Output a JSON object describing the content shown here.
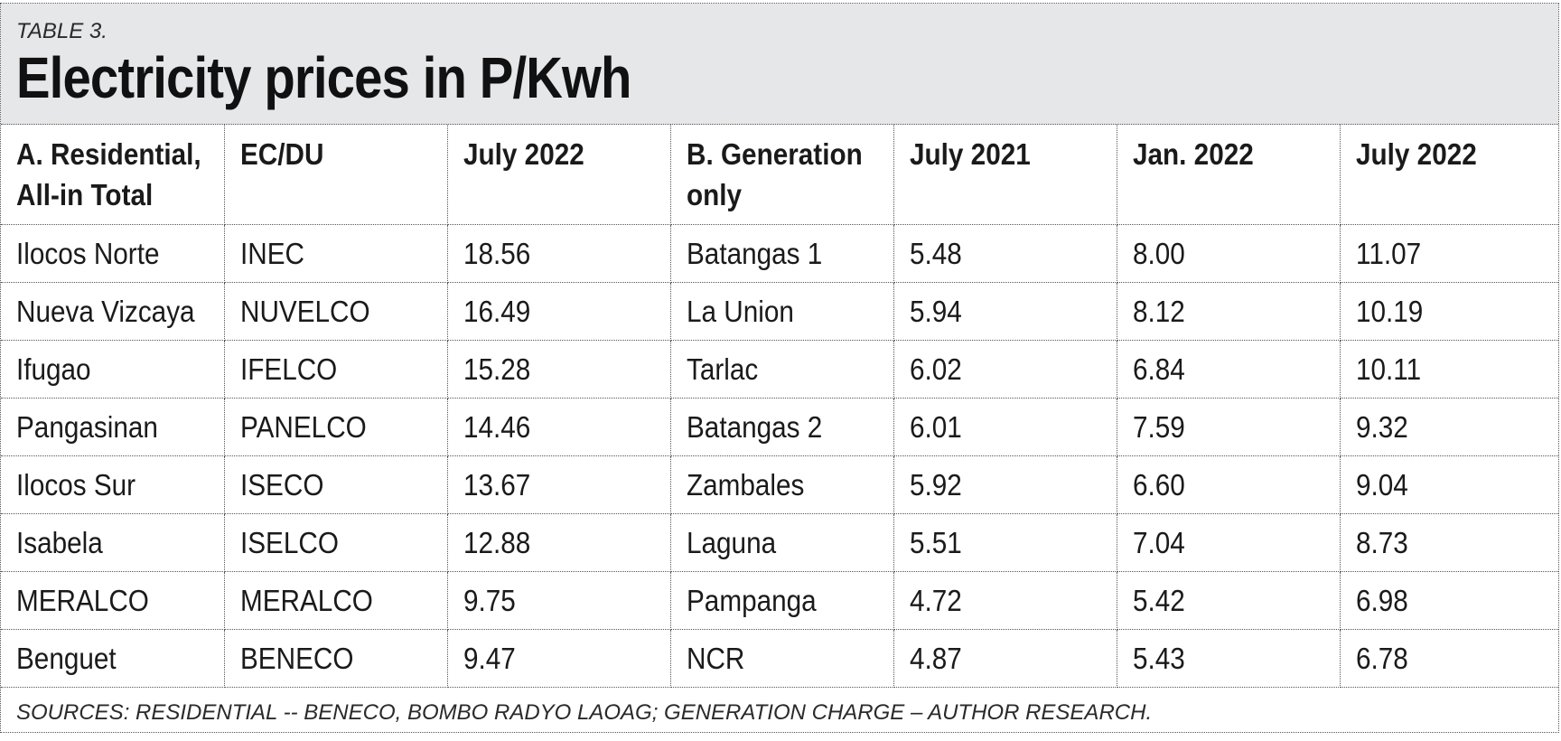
{
  "table_label": "TABLE 3.",
  "title": "Electricity prices in P/Kwh",
  "columns": [
    "A. Residential, All-in Total",
    "EC/DU",
    "July 2022",
    "B. Generation only",
    "July 2021",
    "Jan. 2022",
    "July 2022"
  ],
  "rows": [
    [
      "Ilocos Norte",
      "INEC",
      "18.56",
      "Batangas 1",
      "5.48",
      "8.00",
      "11.07"
    ],
    [
      "Nueva Vizcaya",
      "NUVELCO",
      "16.49",
      "La Union",
      "5.94",
      "8.12",
      "10.19"
    ],
    [
      "Ifugao",
      "IFELCO",
      "15.28",
      "Tarlac",
      "6.02",
      "6.84",
      "10.11"
    ],
    [
      "Pangasinan",
      "PANELCO",
      "14.46",
      "Batangas 2",
      "6.01",
      "7.59",
      "9.32"
    ],
    [
      "Ilocos Sur",
      "ISECO",
      "13.67",
      "Zambales",
      "5.92",
      "6.60",
      "9.04"
    ],
    [
      "Isabela",
      "ISELCO",
      "12.88",
      "Laguna",
      "5.51",
      "7.04",
      "8.73"
    ],
    [
      "MERALCO",
      "MERALCO",
      "9.75",
      "Pampanga",
      "4.72",
      "5.42",
      "6.98"
    ],
    [
      "Benguet",
      "BENECO",
      "9.47",
      "NCR",
      "4.87",
      "5.43",
      "6.78"
    ]
  ],
  "footer": "SOURCES: RESIDENTIAL -- BENECO, BOMBO RADYO LAOAG; GENERATION CHARGE – AUTHOR RESEARCH.",
  "colors": {
    "header_bg": "#e6e7e9",
    "text": "#1a1a1a",
    "border": "#555555"
  }
}
